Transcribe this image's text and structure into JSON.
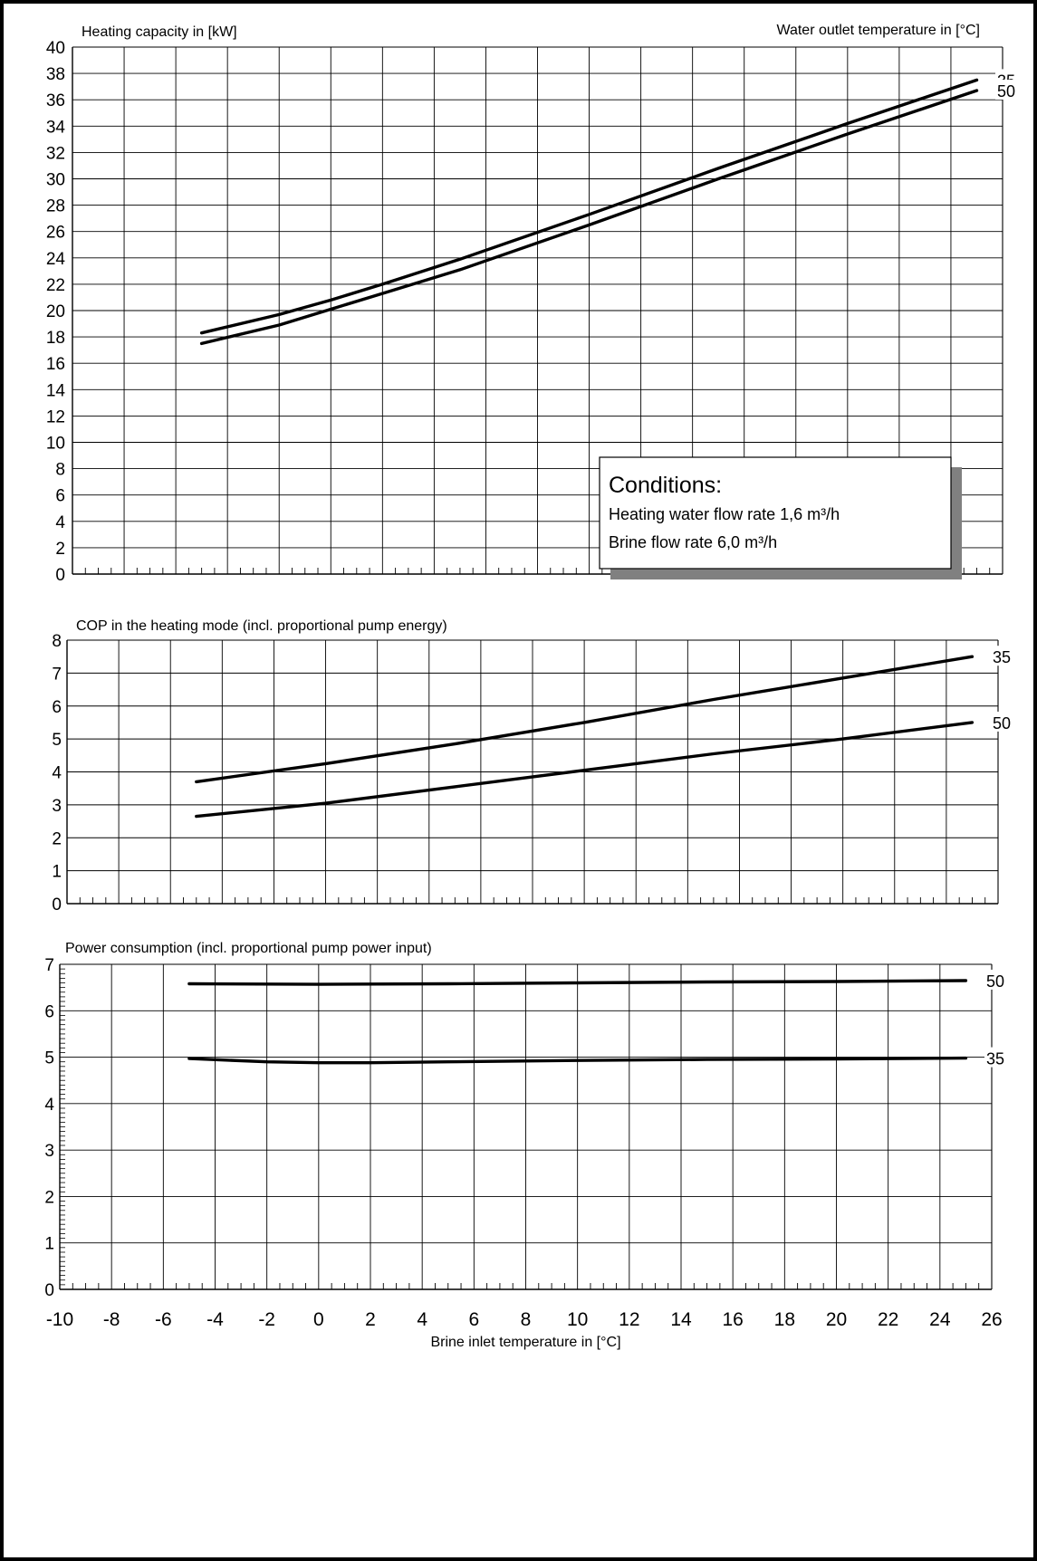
{
  "chart_data": [
    {
      "type": "line",
      "title": "Heating capacity in [kW]",
      "legend_title": "Water outlet temperature in [°C]",
      "xlim": [
        -10,
        26
      ],
      "ylim": [
        0,
        40
      ],
      "yticks": [
        0,
        2,
        4,
        6,
        8,
        10,
        12,
        14,
        16,
        18,
        20,
        22,
        24,
        26,
        28,
        30,
        32,
        34,
        36,
        38,
        40
      ],
      "series": [
        {
          "name": "35",
          "x": [
            -5,
            -2,
            0,
            2,
            5,
            10,
            15,
            20,
            25
          ],
          "y": [
            18.3,
            19.7,
            20.8,
            22.0,
            23.9,
            27.3,
            30.8,
            34.2,
            37.5
          ]
        },
        {
          "name": "50",
          "x": [
            -5,
            -2,
            0,
            2,
            5,
            10,
            15,
            20,
            25
          ],
          "y": [
            17.5,
            18.9,
            20.1,
            21.3,
            23.1,
            26.5,
            30.0,
            33.4,
            36.7
          ]
        }
      ],
      "annotation": {
        "heading": "Conditions:",
        "line1": "Heating water flow rate 1,6 m³/h",
        "line2": "Brine flow rate 6,0 m³/h"
      }
    },
    {
      "type": "line",
      "title": "COP in the heating mode (incl. proportional pump energy)",
      "xlim": [
        -10,
        26
      ],
      "ylim": [
        0,
        8
      ],
      "yticks": [
        0,
        1,
        2,
        3,
        4,
        5,
        6,
        7,
        8
      ],
      "series": [
        {
          "name": "35",
          "x": [
            -5,
            0,
            5,
            10,
            15,
            20,
            25
          ],
          "y": [
            3.7,
            4.25,
            4.85,
            5.5,
            6.2,
            6.85,
            7.5
          ]
        },
        {
          "name": "50",
          "x": [
            -5,
            0,
            5,
            10,
            15,
            20,
            25
          ],
          "y": [
            2.65,
            3.05,
            3.55,
            4.05,
            4.55,
            5.0,
            5.5
          ]
        }
      ]
    },
    {
      "type": "line",
      "title": "Power consumption (incl. proportional pump power input)",
      "xlabel": "Brine inlet temperature in [°C]",
      "xlim": [
        -10,
        26
      ],
      "ylim": [
        0,
        7
      ],
      "yticks": [
        0,
        1,
        2,
        3,
        4,
        5,
        6,
        7
      ],
      "xticks": [
        -10,
        -8,
        -6,
        -4,
        -2,
        0,
        2,
        4,
        6,
        8,
        10,
        12,
        14,
        16,
        18,
        20,
        22,
        24,
        26
      ],
      "series": [
        {
          "name": "50",
          "x": [
            -5,
            0,
            5,
            10,
            15,
            20,
            25
          ],
          "y": [
            6.58,
            6.57,
            6.58,
            6.6,
            6.62,
            6.63,
            6.65
          ]
        },
        {
          "name": "35",
          "x": [
            -5,
            -2,
            0,
            2,
            5,
            10,
            15,
            20,
            25
          ],
          "y": [
            4.97,
            4.9,
            4.88,
            4.88,
            4.9,
            4.93,
            4.95,
            4.96,
            4.98
          ]
        }
      ]
    }
  ]
}
